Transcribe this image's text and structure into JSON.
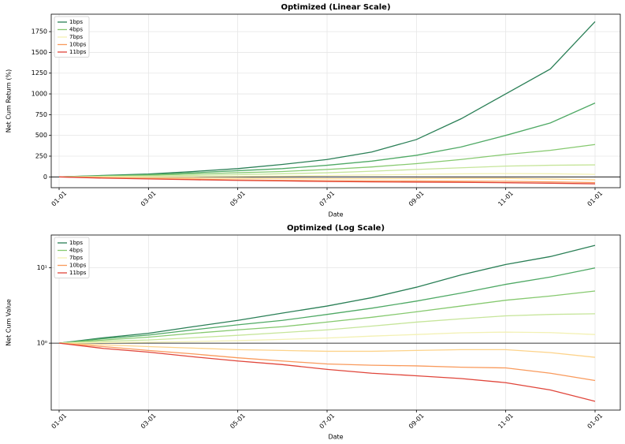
{
  "chart_data": [
    {
      "type": "line",
      "title": "Optimized (Linear Scale)",
      "x_label": "Date",
      "y_label": "Net Cum Return (%)",
      "categories": [
        "01-01",
        null,
        "03-01",
        null,
        "05-01",
        null,
        "07-01",
        null,
        "09-01",
        null,
        "11-01",
        null,
        "01-01"
      ],
      "ylim": [
        -130,
        1960
      ],
      "yticks": [
        0,
        250,
        500,
        750,
        1000,
        1250,
        1500,
        1750
      ],
      "grid": true,
      "hline": 0,
      "legend": "upper-left",
      "series": [
        {
          "name": "1bps",
          "color": "#2a7f56",
          "values": [
            0,
            18,
            35,
            65,
            100,
            150,
            210,
            300,
            450,
            700,
            1000,
            1300,
            1870
          ]
        },
        {
          "color": "#4fa965",
          "values": [
            0,
            15,
            28,
            50,
            75,
            100,
            140,
            190,
            260,
            360,
            500,
            650,
            890
          ]
        },
        {
          "name": "4bps",
          "color": "#86c96f",
          "values": [
            0,
            10,
            20,
            35,
            50,
            65,
            90,
            120,
            160,
            210,
            270,
            320,
            390
          ]
        },
        {
          "color": "#c6e59a",
          "values": [
            0,
            6,
            10,
            18,
            27,
            38,
            50,
            68,
            90,
            110,
            130,
            140,
            145
          ]
        },
        {
          "name": "7bps",
          "color": "#f3f1b4",
          "values": [
            0,
            2,
            3,
            5,
            8,
            12,
            17,
            24,
            30,
            37,
            40,
            38,
            30
          ]
        },
        {
          "color": "#fdd38a",
          "values": [
            0,
            -5,
            -10,
            -14,
            -18,
            -20,
            -22,
            -22,
            -20,
            -18,
            -18,
            -25,
            -35
          ]
        },
        {
          "name": "10bps",
          "color": "#f99a5c",
          "values": [
            0,
            -10,
            -20,
            -28,
            -36,
            -42,
            -47,
            -49,
            -50,
            -52,
            -53,
            -60,
            -68
          ]
        },
        {
          "name": "11bps",
          "color": "#e0453a",
          "values": [
            0,
            -15,
            -24,
            -34,
            -42,
            -48,
            -55,
            -60,
            -63,
            -66,
            -70,
            -76,
            -83
          ]
        }
      ]
    },
    {
      "type": "line",
      "title": "Optimized (Log Scale)",
      "x_label": "Date",
      "y_label": "Net Cum Value",
      "log_scale": true,
      "categories": [
        "01-01",
        null,
        "03-01",
        null,
        "05-01",
        null,
        "07-01",
        null,
        "09-01",
        null,
        "11-01",
        null,
        "01-01"
      ],
      "ylim": [
        0.13,
        27
      ],
      "yticks": [
        {
          "value": 1,
          "label": "10⁰"
        },
        {
          "value": 10,
          "label": "10¹"
        }
      ],
      "grid": true,
      "hline": 1,
      "legend": "upper-left",
      "series": [
        {
          "name": "1bps",
          "color": "#2a7f56",
          "values": [
            1,
            1.18,
            1.35,
            1.65,
            2.0,
            2.5,
            3.1,
            4.0,
            5.5,
            8.0,
            11.0,
            14.0,
            19.7
          ]
        },
        {
          "color": "#4fa965",
          "values": [
            1,
            1.15,
            1.28,
            1.5,
            1.75,
            2.0,
            2.4,
            2.9,
            3.6,
            4.6,
            6.0,
            7.5,
            9.9
          ]
        },
        {
          "name": "4bps",
          "color": "#86c96f",
          "values": [
            1,
            1.1,
            1.2,
            1.35,
            1.5,
            1.65,
            1.9,
            2.2,
            2.6,
            3.1,
            3.7,
            4.2,
            4.9
          ]
        },
        {
          "color": "#c6e59a",
          "values": [
            1,
            1.06,
            1.1,
            1.18,
            1.27,
            1.38,
            1.5,
            1.68,
            1.9,
            2.1,
            2.3,
            2.4,
            2.45
          ]
        },
        {
          "name": "7bps",
          "color": "#f3f1b4",
          "values": [
            1,
            1.02,
            1.03,
            1.05,
            1.08,
            1.12,
            1.17,
            1.24,
            1.3,
            1.37,
            1.4,
            1.38,
            1.3
          ]
        },
        {
          "color": "#fdd38a",
          "values": [
            1,
            0.95,
            0.9,
            0.86,
            0.82,
            0.8,
            0.78,
            0.78,
            0.8,
            0.82,
            0.82,
            0.75,
            0.65
          ]
        },
        {
          "name": "10bps",
          "color": "#f99a5c",
          "values": [
            1,
            0.9,
            0.8,
            0.72,
            0.64,
            0.58,
            0.53,
            0.51,
            0.5,
            0.48,
            0.47,
            0.4,
            0.32
          ]
        },
        {
          "name": "11bps",
          "color": "#e0453a",
          "values": [
            1,
            0.85,
            0.76,
            0.66,
            0.58,
            0.52,
            0.45,
            0.4,
            0.37,
            0.34,
            0.3,
            0.24,
            0.17
          ]
        }
      ]
    }
  ]
}
